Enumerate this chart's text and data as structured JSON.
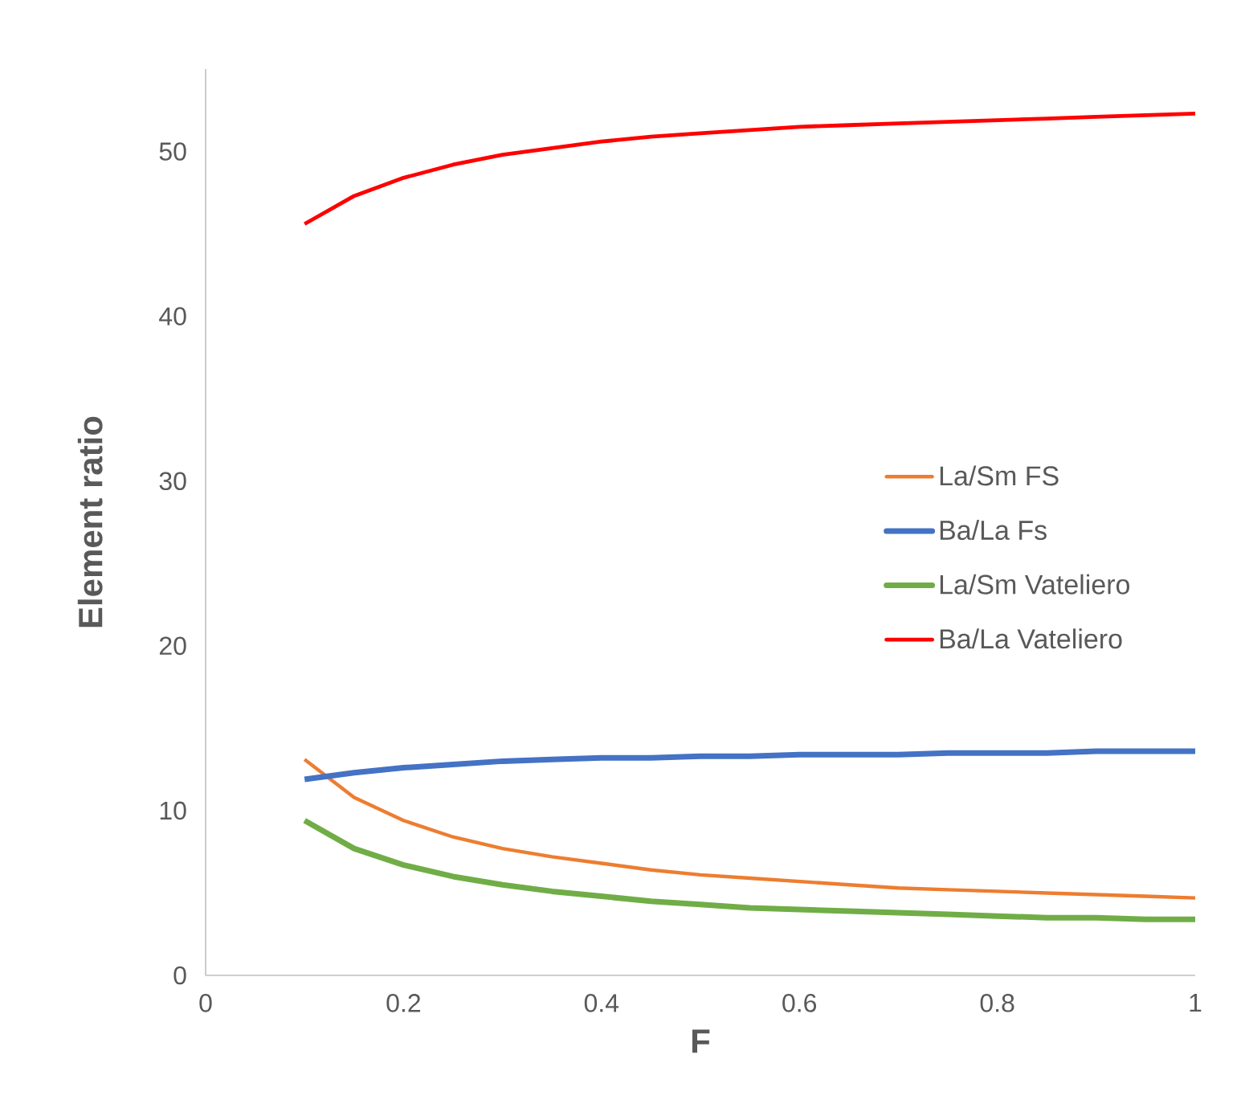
{
  "chart_data": {
    "type": "line",
    "xlabel": "F",
    "ylabel": "Element ratio",
    "x": [
      0.1,
      0.15,
      0.2,
      0.25,
      0.3,
      0.35,
      0.4,
      0.45,
      0.5,
      0.55,
      0.6,
      0.65,
      0.7,
      0.75,
      0.8,
      0.85,
      0.9,
      0.95,
      1.0
    ],
    "series": [
      {
        "name": "La/Sm FS",
        "color": "#ed7d31",
        "values": [
          13.1,
          10.8,
          9.4,
          8.4,
          7.7,
          7.2,
          6.8,
          6.4,
          6.1,
          5.9,
          5.7,
          5.5,
          5.3,
          5.2,
          5.1,
          5.0,
          4.9,
          4.8,
          4.7
        ]
      },
      {
        "name": "Ba/La Fs",
        "color": "#4472c4",
        "values": [
          11.9,
          12.3,
          12.6,
          12.8,
          13.0,
          13.1,
          13.2,
          13.2,
          13.3,
          13.3,
          13.4,
          13.4,
          13.4,
          13.5,
          13.5,
          13.5,
          13.6,
          13.6,
          13.6
        ]
      },
      {
        "name": "La/Sm Vateliero",
        "color": "#70ad47",
        "values": [
          9.4,
          7.7,
          6.7,
          6.0,
          5.5,
          5.1,
          4.8,
          4.5,
          4.3,
          4.1,
          4.0,
          3.9,
          3.8,
          3.7,
          3.6,
          3.5,
          3.5,
          3.4,
          3.4
        ]
      },
      {
        "name": "Ba/La Vateliero",
        "color": "#ff0000",
        "values": [
          45.6,
          47.3,
          48.4,
          49.2,
          49.8,
          50.2,
          50.6,
          50.9,
          51.1,
          51.3,
          51.5,
          51.6,
          51.7,
          51.8,
          51.9,
          52.0,
          52.1,
          52.2,
          52.3
        ]
      }
    ],
    "xlim": [
      0,
      1
    ],
    "xticks": [
      0,
      0.2,
      0.4,
      0.6,
      0.8,
      1
    ],
    "ylim": [
      0,
      55
    ],
    "yticks": [
      0,
      10,
      20,
      30,
      40,
      50
    ],
    "grid": false,
    "legend": "right",
    "marker": "none",
    "line_style": "solid"
  }
}
